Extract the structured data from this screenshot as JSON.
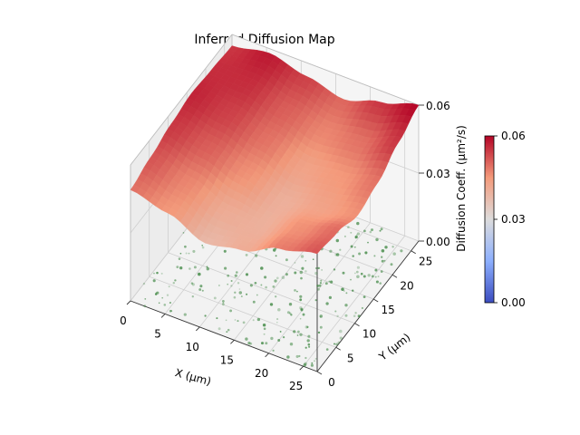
{
  "chart_data": {
    "type": "surface3d",
    "title": "Inferred Diffusion Map",
    "x_axis": {
      "label": "X (μm)",
      "range": [
        0,
        27
      ],
      "ticks": [
        0,
        5,
        10,
        15,
        20,
        25
      ],
      "tick_labels": [
        "0",
        "5",
        "10",
        "15",
        "20",
        "25"
      ]
    },
    "y_axis": {
      "label": "Y (μm)",
      "range": [
        0,
        27
      ],
      "ticks": [
        0,
        5,
        10,
        15,
        20,
        25
      ],
      "tick_labels": [
        "0",
        "5",
        "10",
        "15",
        "20",
        "25"
      ]
    },
    "z_axis": {
      "label": "Diffusion Coeff. (μm²/s)",
      "range": [
        0,
        0.06
      ],
      "ticks": [
        0.0,
        0.03,
        0.06
      ],
      "tick_labels": [
        "0.00",
        "0.03",
        "0.06"
      ]
    },
    "colorbar": {
      "range": [
        0.0,
        0.06
      ],
      "ticks": [
        0.0,
        0.03,
        0.06
      ],
      "tick_labels": [
        "0.00",
        "0.03",
        "0.06"
      ],
      "colormap": "coolwarm",
      "colors": [
        "#3b4cc0",
        "#dddcdc",
        "#b40426"
      ]
    },
    "grid": true,
    "surface": {
      "x": [
        0,
        5.4,
        10.8,
        16.2,
        21.6,
        27
      ],
      "y": [
        0,
        5.4,
        10.8,
        16.2,
        21.6,
        27
      ],
      "z": [
        [
          0.049,
          0.052,
          0.055,
          0.057,
          0.056,
          0.055
        ],
        [
          0.045,
          0.047,
          0.051,
          0.054,
          0.056,
          0.058
        ],
        [
          0.038,
          0.041,
          0.046,
          0.049,
          0.051,
          0.054
        ],
        [
          0.041,
          0.04,
          0.04,
          0.043,
          0.047,
          0.05
        ],
        [
          0.048,
          0.046,
          0.043,
          0.045,
          0.049,
          0.055
        ],
        [
          0.052,
          0.05,
          0.046,
          0.049,
          0.055,
          0.06
        ]
      ]
    },
    "scatter_color": "#2e7d32"
  }
}
